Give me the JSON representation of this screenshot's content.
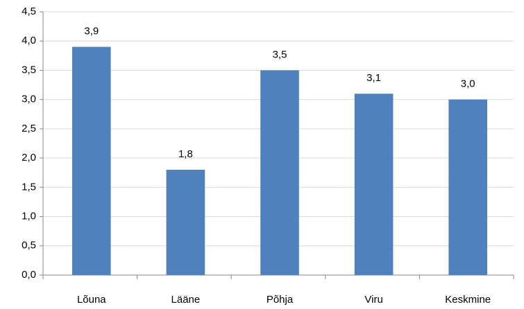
{
  "chart_data": {
    "type": "bar",
    "categories": [
      "Lõuna",
      "Lääne",
      "Põhja",
      "Viru",
      "Keskmine"
    ],
    "values": [
      3.9,
      1.8,
      3.5,
      3.1,
      3.0
    ],
    "value_labels": [
      "3,9",
      "1,8",
      "3,5",
      "3,1",
      "3,0"
    ],
    "color": "#4f81bd",
    "ylim": [
      0,
      4.5
    ],
    "yticks": [
      {
        "value": 0,
        "label": "0,0"
      },
      {
        "value": 0.5,
        "label": "0,5"
      },
      {
        "value": 1,
        "label": "1,0"
      },
      {
        "value": 1.5,
        "label": "1,5"
      },
      {
        "value": 2,
        "label": "2,0"
      },
      {
        "value": 2.5,
        "label": "2,5"
      },
      {
        "value": 3,
        "label": "3,0"
      },
      {
        "value": 3.5,
        "label": "3,5"
      },
      {
        "value": 4,
        "label": "4,0"
      },
      {
        "value": 4.5,
        "label": "4,5"
      }
    ],
    "grid": true
  }
}
